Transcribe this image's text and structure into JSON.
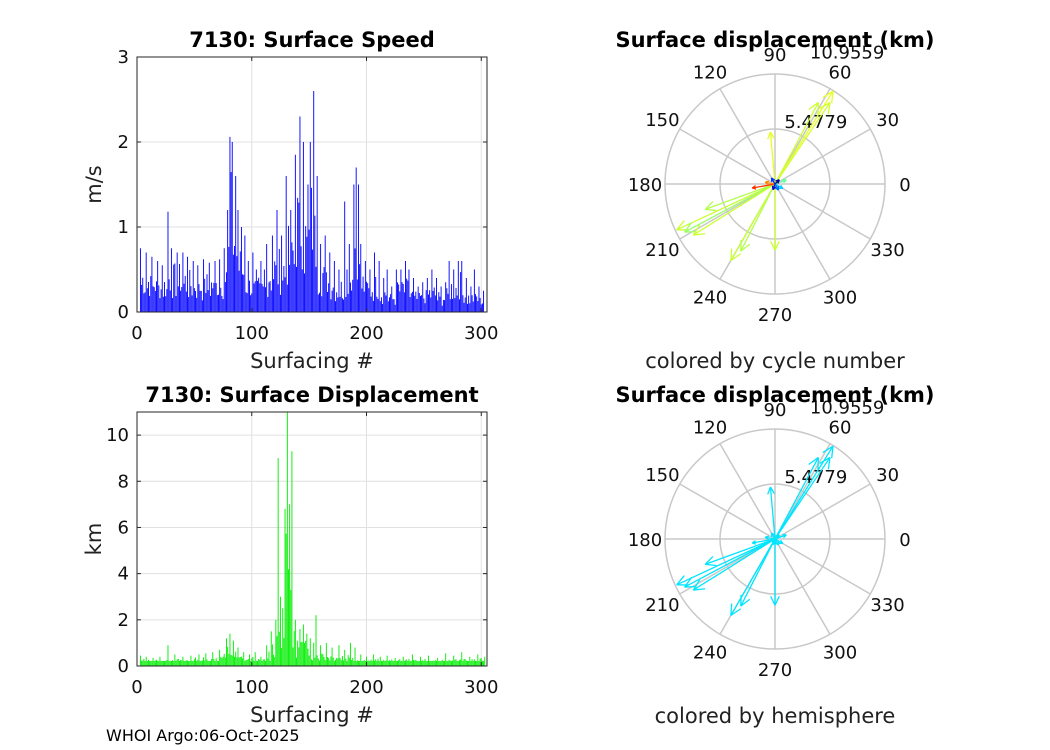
{
  "footer": "WHOI Argo:06-Oct-2025",
  "chart_data": [
    {
      "id": "speed",
      "type": "bar",
      "title": "7130: Surface Speed",
      "xlabel": "Surfacing #",
      "ylabel": "m/s",
      "xlim": [
        0,
        305
      ],
      "ylim": [
        0,
        3
      ],
      "xticks": [
        0,
        100,
        200,
        300
      ],
      "yticks": [
        0,
        1,
        2,
        3
      ],
      "color": "#0000ff",
      "peaks": [
        [
          3,
          0.75
        ],
        [
          8,
          0.7
        ],
        [
          13,
          0.65
        ],
        [
          18,
          0.6
        ],
        [
          22,
          0.55
        ],
        [
          27,
          1.18
        ],
        [
          30,
          0.75
        ],
        [
          35,
          0.7
        ],
        [
          40,
          0.7
        ],
        [
          44,
          0.65
        ],
        [
          49,
          0.6
        ],
        [
          53,
          0.55
        ],
        [
          58,
          0.62
        ],
        [
          63,
          0.58
        ],
        [
          68,
          0.6
        ],
        [
          72,
          0.62
        ],
        [
          76,
          0.75
        ],
        [
          79,
          1.2
        ],
        [
          81,
          2.06
        ],
        [
          83,
          2.0
        ],
        [
          86,
          1.6
        ],
        [
          88,
          1.2
        ],
        [
          91,
          1.0
        ],
        [
          94,
          0.9
        ],
        [
          97,
          0.6
        ],
        [
          101,
          0.7
        ],
        [
          104,
          0.5
        ],
        [
          108,
          0.6
        ],
        [
          111,
          0.5
        ],
        [
          113,
          0.8
        ],
        [
          118,
          0.9
        ],
        [
          122,
          1.2
        ],
        [
          126,
          0.9
        ],
        [
          130,
          1.6
        ],
        [
          134,
          1.2
        ],
        [
          138,
          1.85
        ],
        [
          142,
          2.3
        ],
        [
          145,
          2.0
        ],
        [
          149,
          1.5
        ],
        [
          151,
          2.0
        ],
        [
          154,
          2.6
        ],
        [
          157,
          1.6
        ],
        [
          160,
          0.8
        ],
        [
          164,
          0.9
        ],
        [
          168,
          0.7
        ],
        [
          172,
          0.6
        ],
        [
          176,
          0.5
        ],
        [
          181,
          1.3
        ],
        [
          185,
          0.8
        ],
        [
          189,
          1.5
        ],
        [
          191,
          1.7
        ],
        [
          193,
          1.5
        ],
        [
          195,
          0.8
        ],
        [
          199,
          0.6
        ],
        [
          203,
          0.5
        ],
        [
          207,
          0.7
        ],
        [
          211,
          0.6
        ],
        [
          215,
          0.4
        ],
        [
          218,
          0.5
        ],
        [
          222,
          0.3
        ],
        [
          226,
          0.5
        ],
        [
          230,
          0.5
        ],
        [
          234,
          0.6
        ],
        [
          237,
          0.5
        ],
        [
          241,
          0.4
        ],
        [
          245,
          0.3
        ],
        [
          249,
          0.35
        ],
        [
          253,
          0.4
        ],
        [
          257,
          0.5
        ],
        [
          261,
          0.4
        ],
        [
          265,
          0.3
        ],
        [
          269,
          0.35
        ],
        [
          272,
          0.6
        ],
        [
          276,
          0.5
        ],
        [
          280,
          0.6
        ],
        [
          283,
          0.6
        ],
        [
          287,
          0.4
        ],
        [
          291,
          0.3
        ],
        [
          294,
          0.5
        ],
        [
          298,
          0.3
        ],
        [
          302,
          0.25
        ]
      ]
    },
    {
      "id": "displacement",
      "type": "bar",
      "title": "7130: Surface Displacement",
      "xlabel": "Surfacing #",
      "ylabel": "km",
      "xlim": [
        0,
        305
      ],
      "ylim": [
        0,
        11
      ],
      "xticks": [
        0,
        100,
        200,
        300
      ],
      "yticks": [
        0,
        2,
        4,
        6,
        8,
        10
      ],
      "color": "#00ee00",
      "peaks": [
        [
          3,
          0.45
        ],
        [
          8,
          0.4
        ],
        [
          14,
          0.35
        ],
        [
          20,
          0.4
        ],
        [
          27,
          0.9
        ],
        [
          33,
          0.5
        ],
        [
          40,
          0.4
        ],
        [
          47,
          0.45
        ],
        [
          54,
          0.5
        ],
        [
          60,
          0.55
        ],
        [
          66,
          0.6
        ],
        [
          72,
          0.7
        ],
        [
          78,
          1.2
        ],
        [
          81,
          1.4
        ],
        [
          84,
          1.1
        ],
        [
          88,
          0.8
        ],
        [
          93,
          0.6
        ],
        [
          98,
          0.5
        ],
        [
          103,
          0.6
        ],
        [
          108,
          0.4
        ],
        [
          113,
          0.9
        ],
        [
          117,
          1.5
        ],
        [
          121,
          2.0
        ],
        [
          123,
          9.0
        ],
        [
          125,
          3.0
        ],
        [
          127,
          2.5
        ],
        [
          129,
          6.8
        ],
        [
          131,
          11.0
        ],
        [
          133,
          7.0
        ],
        [
          135,
          9.3
        ],
        [
          138,
          2.0
        ],
        [
          142,
          1.6
        ],
        [
          145,
          1.8
        ],
        [
          148,
          1.4
        ],
        [
          151,
          1.2
        ],
        [
          154,
          1.0
        ],
        [
          156,
          2.2
        ],
        [
          160,
          0.9
        ],
        [
          165,
          1.0
        ],
        [
          170,
          0.8
        ],
        [
          176,
          0.9
        ],
        [
          181,
          0.7
        ],
        [
          186,
          1.0
        ],
        [
          190,
          0.8
        ],
        [
          195,
          0.5
        ],
        [
          200,
          0.4
        ],
        [
          206,
          0.5
        ],
        [
          212,
          0.4
        ],
        [
          218,
          0.45
        ],
        [
          225,
          0.35
        ],
        [
          232,
          0.4
        ],
        [
          240,
          0.5
        ],
        [
          247,
          0.4
        ],
        [
          254,
          0.45
        ],
        [
          262,
          0.35
        ],
        [
          269,
          0.55
        ],
        [
          276,
          0.45
        ],
        [
          283,
          0.6
        ],
        [
          290,
          0.4
        ],
        [
          297,
          0.5
        ],
        [
          303,
          0.4
        ]
      ]
    },
    {
      "id": "polar1",
      "type": "polar-compass",
      "title": "Surface displacement (km)",
      "caption": "colored by cycle number",
      "rmax": 10.9559,
      "rtick_labels": [
        "5.4779",
        "10.9559"
      ],
      "angle_labels": [
        "0",
        "30",
        "60",
        "90",
        "120",
        "150",
        "180",
        "210",
        "240",
        "270",
        "300",
        "330"
      ],
      "vectors": [
        {
          "angle": 58,
          "r": 10.9,
          "color": "#e8ff20"
        },
        {
          "angle": 56,
          "r": 9.8,
          "color": "#d0ff30"
        },
        {
          "angle": 62,
          "r": 9.2,
          "color": "#ccff33"
        },
        {
          "angle": 95,
          "r": 5.2,
          "color": "#e6ff22"
        },
        {
          "angle": 205,
          "r": 10.8,
          "color": "#ccff33"
        },
        {
          "angle": 208,
          "r": 10.2,
          "color": "#99ff66"
        },
        {
          "angle": 212,
          "r": 9.6,
          "color": "#ccff33"
        },
        {
          "angle": 200,
          "r": 7.4,
          "color": "#b3ff4d"
        },
        {
          "angle": 240,
          "r": 8.8,
          "color": "#ccff33"
        },
        {
          "angle": 243,
          "r": 7.5,
          "color": "#b3ff4d"
        },
        {
          "angle": 270,
          "r": 6.6,
          "color": "#ccff33"
        },
        {
          "angle": 190,
          "r": 2.3,
          "color": "#ff3300"
        },
        {
          "angle": 170,
          "r": 1.0,
          "color": "#ff8800"
        },
        {
          "angle": 20,
          "r": 1.2,
          "color": "#66ff99"
        },
        {
          "angle": 330,
          "r": 0.9,
          "color": "#00ccff"
        },
        {
          "angle": 120,
          "r": 0.7,
          "color": "#0033ff"
        },
        {
          "angle": 45,
          "r": 0.6,
          "color": "#000099"
        },
        {
          "angle": 250,
          "r": 0.6,
          "color": "#0000cc"
        },
        {
          "angle": 300,
          "r": 0.7,
          "color": "#0066ff"
        }
      ]
    },
    {
      "id": "polar2",
      "type": "polar-compass",
      "title": "Surface displacement (km)",
      "caption": "colored by hemisphere",
      "rmax": 10.9559,
      "rtick_labels": [
        "5.4779",
        "10.9559"
      ],
      "angle_labels": [
        "0",
        "30",
        "60",
        "90",
        "120",
        "150",
        "180",
        "210",
        "240",
        "270",
        "300",
        "330"
      ],
      "vectors": [
        {
          "angle": 58,
          "r": 10.9,
          "color": "#00e5ff"
        },
        {
          "angle": 56,
          "r": 9.8,
          "color": "#00e5ff"
        },
        {
          "angle": 62,
          "r": 9.2,
          "color": "#00e5ff"
        },
        {
          "angle": 95,
          "r": 5.2,
          "color": "#00e5ff"
        },
        {
          "angle": 205,
          "r": 10.8,
          "color": "#00e5ff"
        },
        {
          "angle": 208,
          "r": 10.2,
          "color": "#00e5ff"
        },
        {
          "angle": 212,
          "r": 9.6,
          "color": "#00e5ff"
        },
        {
          "angle": 200,
          "r": 7.4,
          "color": "#00e5ff"
        },
        {
          "angle": 240,
          "r": 8.8,
          "color": "#00e5ff"
        },
        {
          "angle": 243,
          "r": 7.5,
          "color": "#00e5ff"
        },
        {
          "angle": 270,
          "r": 6.6,
          "color": "#00e5ff"
        },
        {
          "angle": 190,
          "r": 2.3,
          "color": "#00e5ff"
        },
        {
          "angle": 170,
          "r": 1.0,
          "color": "#00e5ff"
        },
        {
          "angle": 20,
          "r": 1.2,
          "color": "#00e5ff"
        },
        {
          "angle": 330,
          "r": 0.9,
          "color": "#00e5ff"
        },
        {
          "angle": 120,
          "r": 0.7,
          "color": "#00e5ff"
        },
        {
          "angle": 45,
          "r": 0.6,
          "color": "#00e5ff"
        },
        {
          "angle": 250,
          "r": 0.6,
          "color": "#00e5ff"
        },
        {
          "angle": 300,
          "r": 0.7,
          "color": "#00e5ff"
        }
      ]
    }
  ]
}
